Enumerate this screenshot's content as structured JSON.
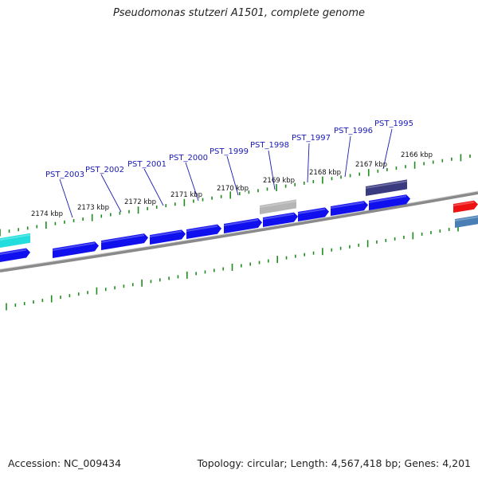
{
  "header": {
    "title": "Pseudomonas stutzeri A1501, complete genome"
  },
  "footer": {
    "accession": "Accession: NC_009434",
    "summary": "Topology: circular; Length: 4,567,418 bp; Genes: 4,201"
  },
  "colors": {
    "backbone": "#8a8a8a",
    "tick": "#1e8c1e",
    "gene_forward": "#1010ee",
    "label": "#1a1ab5",
    "leader_line": "#1a1ab5",
    "pseudo_gene": "#b5b5b5",
    "dark_gene": "#3a3a80",
    "cyan_gene": "#22dddd",
    "red_gene": "#ee1111",
    "steel_gene": "#4a7fb5"
  },
  "scale_labels": [
    "2174 kbp",
    "2173 kbp",
    "2172 kbp",
    "2171 kbp",
    "2170 kbp",
    "2169 kbp",
    "2168 kbp",
    "2167 kbp",
    "2166 kbp"
  ],
  "gene_labels": [
    "PST_2003",
    "PST_2002",
    "PST_2001",
    "PST_2000",
    "PST_1999",
    "PST_1998",
    "PST_1997",
    "PST_1996",
    "PST_1995"
  ]
}
